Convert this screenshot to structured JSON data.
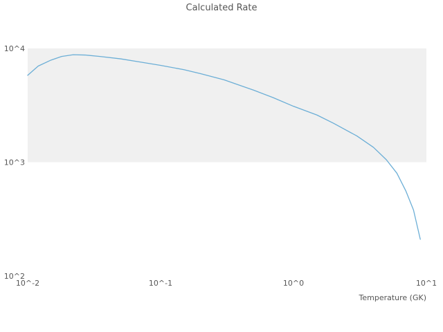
{
  "title": "Calculated Rate",
  "xlabel": "Temperature (GK)",
  "colors": {
    "line": "#6baed6",
    "band": "#f0f0f0",
    "text": "#555555"
  },
  "chart_data": {
    "type": "line",
    "title": "Calculated Rate",
    "xlabel": "Temperature (GK)",
    "ylabel": "",
    "xscale": "log",
    "yscale": "log",
    "xlim": [
      0.01,
      10
    ],
    "ylim": [
      100,
      10000
    ],
    "band_y": [
      1000,
      10000
    ],
    "x_tick_values": [
      0.01,
      0.1,
      1,
      10
    ],
    "x_tick_labels": [
      "10^-2",
      "10^-1",
      "10^0",
      "10^1"
    ],
    "y_tick_values": [
      100,
      1000,
      10000
    ],
    "y_tick_labels": [
      "10^2",
      "10^3",
      "10^4"
    ],
    "legend": "none",
    "grid": "off",
    "series": [
      {
        "name": "calculated-rate",
        "x": [
          0.01,
          0.012,
          0.015,
          0.018,
          0.022,
          0.027,
          0.035,
          0.05,
          0.07,
          0.1,
          0.15,
          0.2,
          0.3,
          0.5,
          0.7,
          1.0,
          1.5,
          2.0,
          3.0,
          4.0,
          5.0,
          6.0,
          7.0,
          8.0,
          9.0
        ],
        "y": [
          5800,
          7000,
          7900,
          8500,
          8800,
          8750,
          8500,
          8100,
          7600,
          7100,
          6500,
          6000,
          5300,
          4300,
          3700,
          3100,
          2600,
          2200,
          1700,
          1350,
          1050,
          800,
          560,
          380,
          210
        ]
      }
    ]
  }
}
